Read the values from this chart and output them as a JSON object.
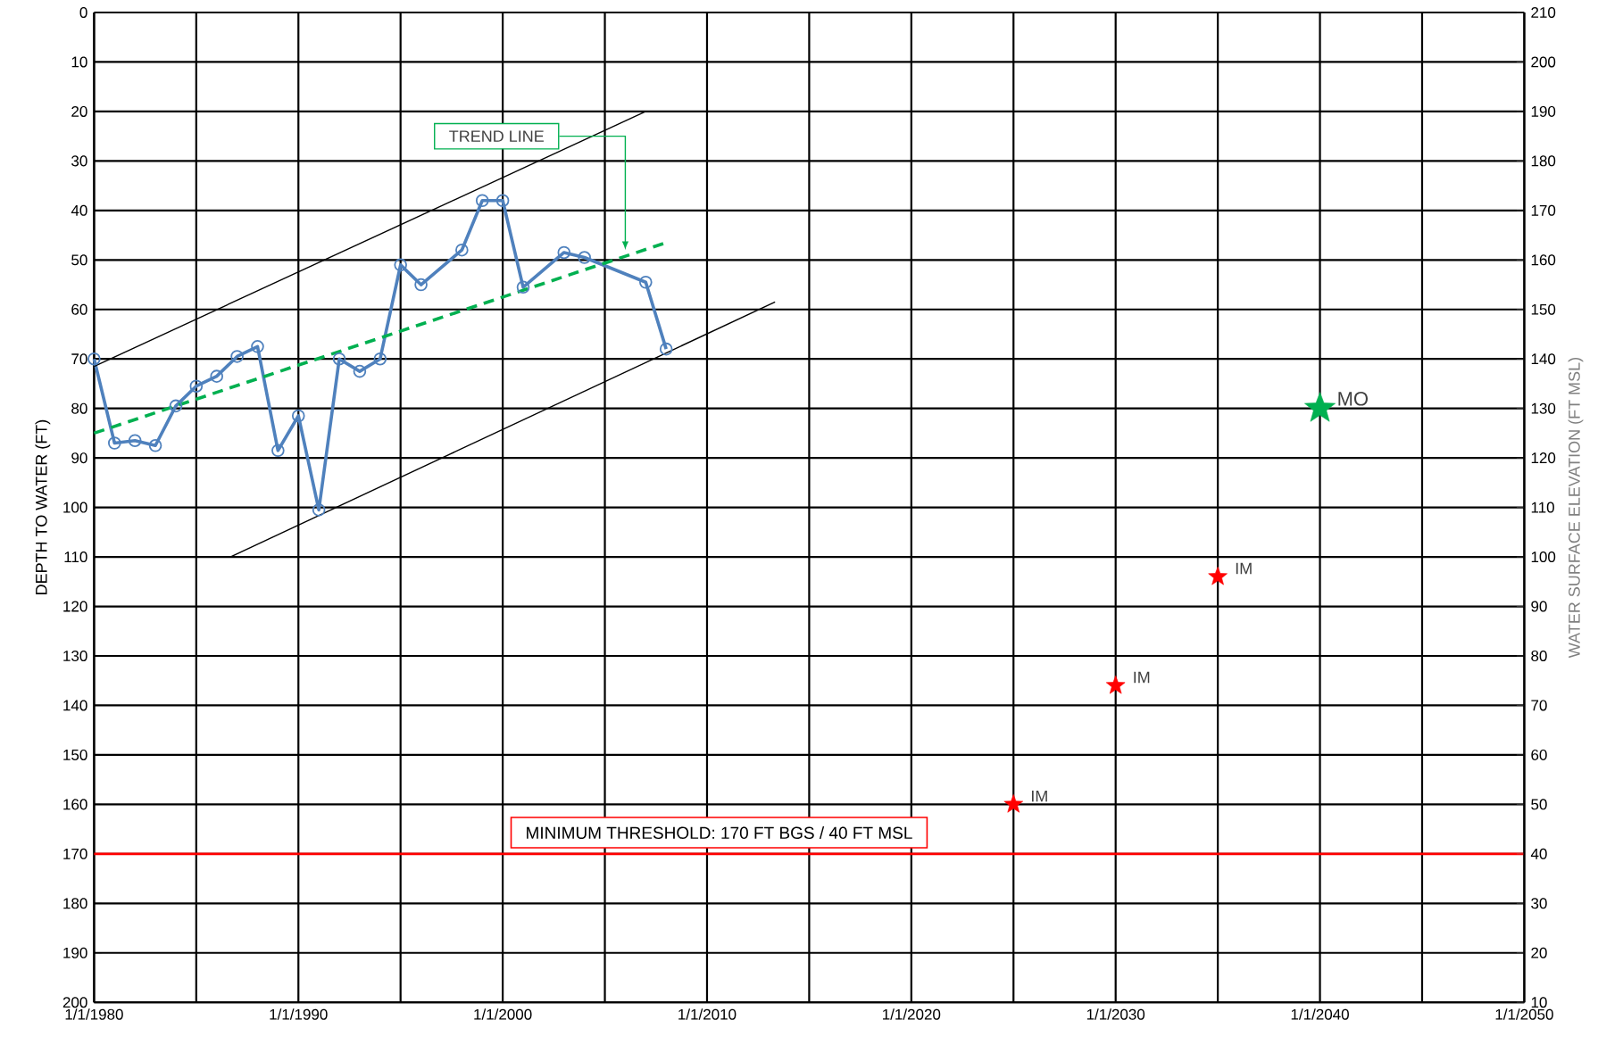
{
  "chart_data": {
    "type": "line",
    "ylabel": "DEPTH TO WATER (FT)",
    "y2label": "WATER SURFACE ELEVATION (FT MSL)",
    "xlim": [
      "1980",
      "2050"
    ],
    "xticks": [
      {
        "value": "1980",
        "label": "1/1/1980"
      },
      {
        "value": "1985",
        "label": null
      },
      {
        "value": "1990",
        "label": "1/1/1990"
      },
      {
        "value": "1995",
        "label": null
      },
      {
        "value": "2000",
        "label": "1/1/2000"
      },
      {
        "value": "2005",
        "label": null
      },
      {
        "value": "2010",
        "label": "1/1/2010"
      },
      {
        "value": "2015",
        "label": null
      },
      {
        "value": "2020",
        "label": "1/1/2020"
      },
      {
        "value": "2025",
        "label": null
      },
      {
        "value": "2030",
        "label": "1/1/2030"
      },
      {
        "value": "2035",
        "label": null
      },
      {
        "value": "2040",
        "label": "1/1/2040"
      },
      {
        "value": "2045",
        "label": null
      },
      {
        "value": "2050",
        "label": "1/1/2050"
      }
    ],
    "ylim": [
      200,
      0
    ],
    "yticks": [
      0,
      10,
      20,
      30,
      40,
      50,
      60,
      70,
      80,
      90,
      100,
      110,
      120,
      130,
      140,
      150,
      160,
      170,
      180,
      190,
      200
    ],
    "y2lim": [
      10,
      210
    ],
    "y2ticks": [
      10,
      20,
      30,
      40,
      50,
      60,
      70,
      80,
      90,
      100,
      110,
      120,
      130,
      140,
      150,
      160,
      170,
      180,
      190,
      200,
      210
    ],
    "grid": true,
    "series": [
      {
        "color": "#4f81bd",
        "marker": "circle",
        "line_style": "solid",
        "x": [
          "1980",
          "1981",
          "1982",
          "1983",
          "1984",
          "1985",
          "1986",
          "1987",
          "1988",
          "1989",
          "1990",
          "1991",
          "1992",
          "1993",
          "1994",
          "1995",
          "1996",
          "1998",
          "1999",
          "2000",
          "2001",
          "2003",
          "2004",
          "2007",
          "2008"
        ],
        "values": [
          70,
          87,
          86.5,
          87.5,
          79.5,
          75.5,
          73.5,
          69.5,
          67.5,
          88.5,
          81.5,
          100.5,
          70,
          72.5,
          70,
          51,
          55,
          48,
          38,
          38,
          55.5,
          48.5,
          49.5,
          54.5,
          68
        ]
      },
      {
        "color": "#00b050",
        "marker": "none",
        "line_style": "dashed",
        "x": [
          "1980",
          "2008"
        ],
        "values": [
          85,
          46.5
        ]
      },
      {
        "color": "#000000",
        "marker": "none",
        "line_style": "solid",
        "x": [
          "1980",
          "2007"
        ],
        "values": [
          71.5,
          20
        ]
      },
      {
        "color": "#000000",
        "marker": "none",
        "line_style": "solid",
        "x": [
          "1986-09",
          "2013-05"
        ],
        "values": [
          110,
          58.5
        ]
      },
      {
        "type": "scatter",
        "color": "#ff0000",
        "marker": "star",
        "x": [
          "2025",
          "2030",
          "2035"
        ],
        "values": [
          160,
          136,
          114
        ]
      },
      {
        "type": "scatter",
        "color": "#00b050",
        "marker": "star",
        "x": [
          "2040"
        ],
        "values": [
          80
        ]
      }
    ],
    "ref_lines": [
      {
        "axis": "y",
        "value": 170,
        "label": "MINIMUM THRESHOLD: 170 FT BGS / 40 FT MSL",
        "color": "#ff0000"
      }
    ],
    "annotations": [
      {
        "text": "TREND LINE",
        "x": "2006",
        "y": 48
      },
      {
        "text": "IM",
        "x": "2025",
        "y": 160
      },
      {
        "text": "IM",
        "x": "2030",
        "y": 136
      },
      {
        "text": "IM",
        "x": "2035",
        "y": 114
      },
      {
        "text": "MO",
        "x": "2040",
        "y": 80
      }
    ]
  }
}
